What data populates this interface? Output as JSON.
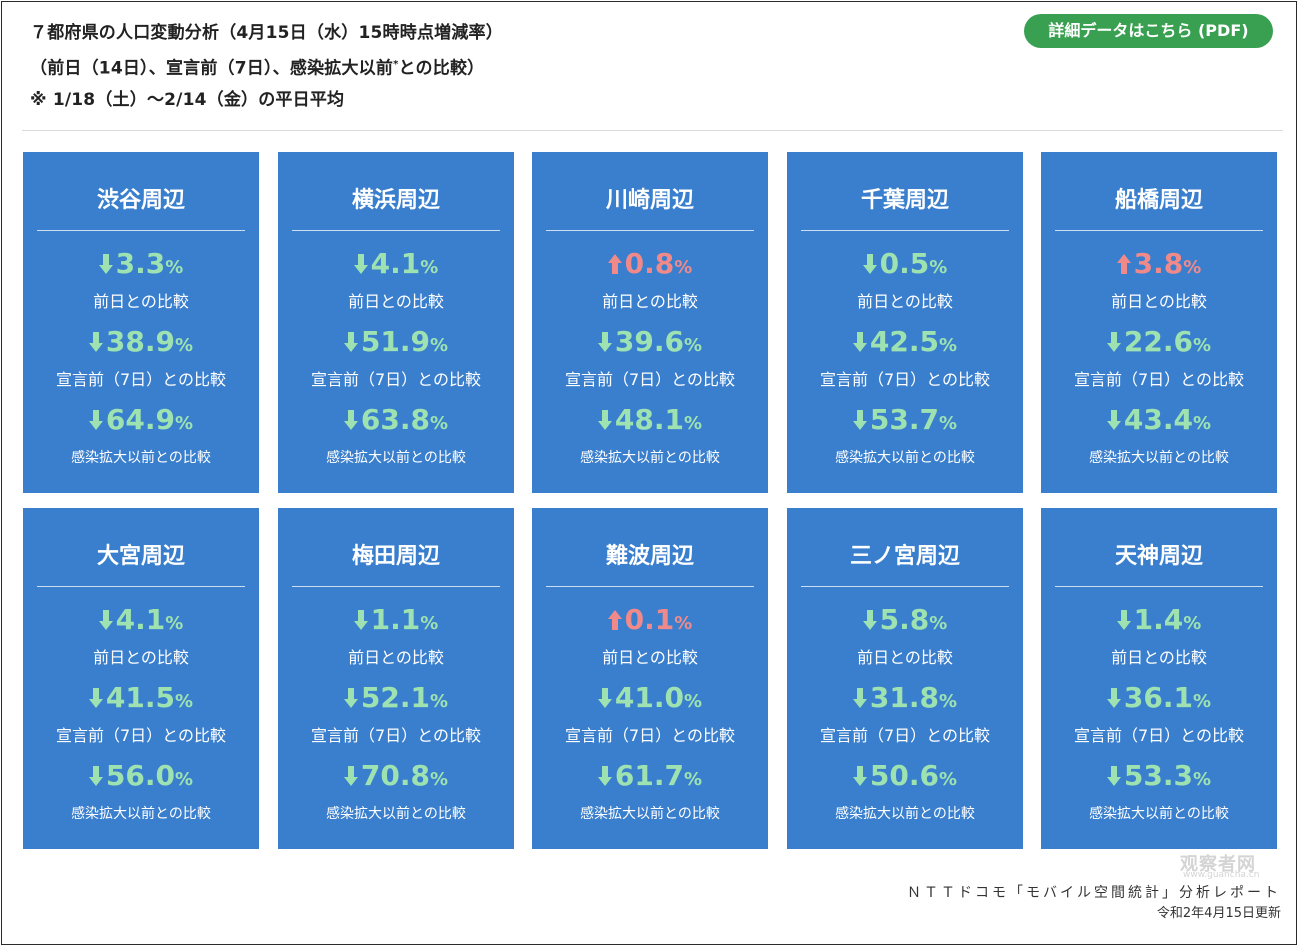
{
  "header": {
    "line1": "７都府県の人口変動分析（4月15日（水）15時時点増減率）",
    "line2a": "（前日（14日）、宣言前（7日）、感染拡大以前",
    "line2_mark": "*",
    "line2b": "との比較）",
    "line3": "※ 1/18（土）～2/14（金）の平日平均"
  },
  "pdf_button_label": "詳細データはこちら (PDF)",
  "colors": {
    "card": "#3a7fcd",
    "decrease": "#9de2b0",
    "increase": "#f08a8a",
    "button": "#3aa051"
  },
  "labels": {
    "prev_day": "前日との比較",
    "pre_declaration": "宣言前（7日）との比較",
    "pre_spread": "感染拡大以前との比較"
  },
  "unit": "%",
  "cards": [
    {
      "title": "渋谷周辺",
      "d1": {
        "dir": "down",
        "value": "3.3"
      },
      "d2": {
        "dir": "down",
        "value": "38.9"
      },
      "d3": {
        "dir": "down",
        "value": "64.9"
      }
    },
    {
      "title": "横浜周辺",
      "d1": {
        "dir": "down",
        "value": "4.1"
      },
      "d2": {
        "dir": "down",
        "value": "51.9"
      },
      "d3": {
        "dir": "down",
        "value": "63.8"
      }
    },
    {
      "title": "川崎周辺",
      "d1": {
        "dir": "up",
        "value": "0.8"
      },
      "d2": {
        "dir": "down",
        "value": "39.6"
      },
      "d3": {
        "dir": "down",
        "value": "48.1"
      }
    },
    {
      "title": "千葉周辺",
      "d1": {
        "dir": "down",
        "value": "0.5"
      },
      "d2": {
        "dir": "down",
        "value": "42.5"
      },
      "d3": {
        "dir": "down",
        "value": "53.7"
      }
    },
    {
      "title": "船橋周辺",
      "d1": {
        "dir": "up",
        "value": "3.8"
      },
      "d2": {
        "dir": "down",
        "value": "22.6"
      },
      "d3": {
        "dir": "down",
        "value": "43.4"
      }
    },
    {
      "title": "大宮周辺",
      "d1": {
        "dir": "down",
        "value": "4.1"
      },
      "d2": {
        "dir": "down",
        "value": "41.5"
      },
      "d3": {
        "dir": "down",
        "value": "56.0"
      }
    },
    {
      "title": "梅田周辺",
      "d1": {
        "dir": "down",
        "value": "1.1"
      },
      "d2": {
        "dir": "down",
        "value": "52.1"
      },
      "d3": {
        "dir": "down",
        "value": "70.8"
      }
    },
    {
      "title": "難波周辺",
      "d1": {
        "dir": "up",
        "value": "0.1"
      },
      "d2": {
        "dir": "down",
        "value": "41.0"
      },
      "d3": {
        "dir": "down",
        "value": "61.7"
      }
    },
    {
      "title": "三ノ宮周辺",
      "d1": {
        "dir": "down",
        "value": "5.8"
      },
      "d2": {
        "dir": "down",
        "value": "31.8"
      },
      "d3": {
        "dir": "down",
        "value": "50.6"
      }
    },
    {
      "title": "天神周辺",
      "d1": {
        "dir": "down",
        "value": "1.4"
      },
      "d2": {
        "dir": "down",
        "value": "36.1"
      },
      "d3": {
        "dir": "down",
        "value": "53.3"
      }
    }
  ],
  "footer": {
    "source": "ＮＴＴドコモ「モバイル空間統計」分析レポート",
    "date": "令和2年4月15日更新"
  },
  "watermark": {
    "text": "观察者网",
    "sub": "www.guancha.cn"
  }
}
